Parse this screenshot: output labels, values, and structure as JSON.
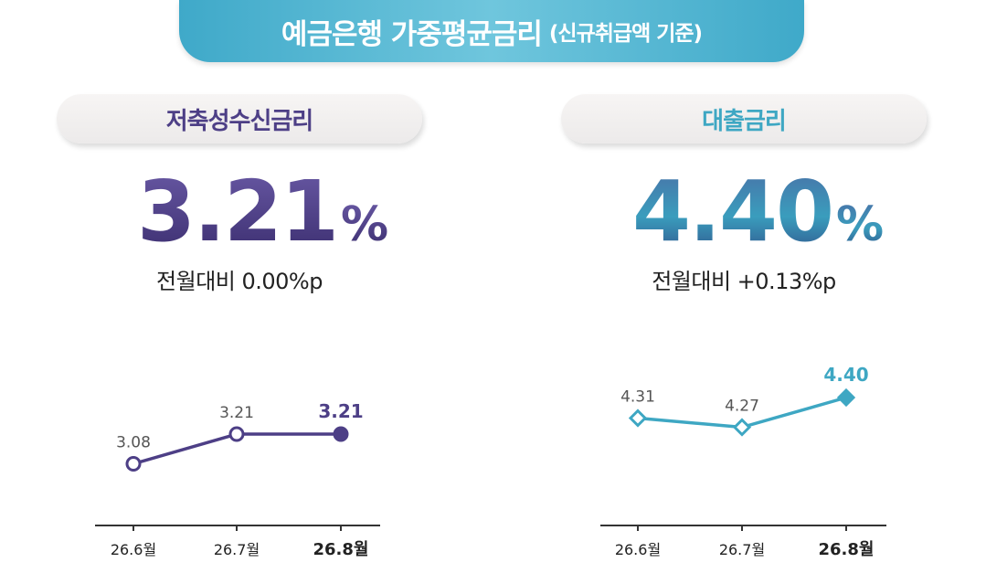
{
  "header": {
    "title": "예금은행 가중평균금리",
    "subtitle": "(신규취급액 기준)"
  },
  "panels": [
    {
      "label": "저축성수신금리",
      "value": "3.21",
      "unit": "%",
      "change": "전월대비 0.00%p",
      "color": "#4d3f86"
    },
    {
      "label": "대출금리",
      "value": "4.40",
      "unit": "%",
      "change": "전월대비 +0.13%p",
      "color": "#3ea7c3"
    }
  ],
  "chart_data": [
    {
      "type": "line",
      "categories": [
        "26.6월",
        "26.7월",
        "26.8월"
      ],
      "series": [
        {
          "values": [
            3.08,
            3.21,
            3.21
          ]
        }
      ],
      "data_labels": [
        "3.08",
        "3.21",
        "3.21"
      ],
      "ylim": [
        2.95,
        3.35
      ],
      "marker": "circle",
      "color": "#4d3f86",
      "grid": false
    },
    {
      "type": "line",
      "categories": [
        "26.6월",
        "26.7월",
        "26.8월"
      ],
      "series": [
        {
          "values": [
            4.31,
            4.27,
            4.4
          ]
        }
      ],
      "data_labels": [
        "4.31",
        "4.27",
        "4.40"
      ],
      "ylim": [
        4.1,
        4.5
      ],
      "marker": "diamond",
      "color": "#3ea7c3",
      "grid": false
    }
  ]
}
